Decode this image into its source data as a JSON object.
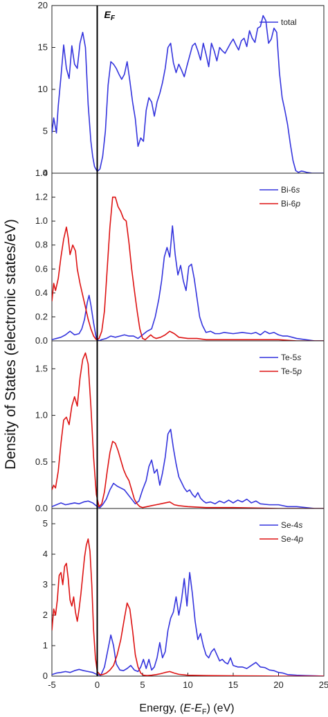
{
  "ylabel": "Density of States (electronic states/eV)",
  "xlabel": {
    "prefix": "Energy, (",
    "e": "E",
    "minus": "-",
    "ef": "E",
    "ef_sub": "F",
    "suffix": ") (eV)"
  },
  "fermi_label": {
    "main": "E",
    "sub": "F"
  },
  "colors": {
    "s": "#3333dd",
    "p": "#dd1111",
    "fermi": "#000000"
  },
  "chart_data": [
    {
      "type": "line",
      "panel": "total",
      "xlim": [
        -5,
        25
      ],
      "ylim": [
        0,
        20
      ],
      "yticks": [
        0,
        5,
        10,
        15,
        20
      ],
      "xticks": [],
      "legend": "top-right",
      "series": [
        {
          "name": "total",
          "color": "#3333dd",
          "x": [
            -5,
            -4.8,
            -4.5,
            -4.3,
            -4,
            -3.7,
            -3.4,
            -3.1,
            -2.8,
            -2.5,
            -2.2,
            -1.9,
            -1.6,
            -1.3,
            -1,
            -0.7,
            -0.5,
            -0.3,
            0,
            0.3,
            0.6,
            0.9,
            1.2,
            1.5,
            1.8,
            2.1,
            2.4,
            2.7,
            3,
            3.3,
            3.6,
            3.9,
            4.2,
            4.5,
            4.8,
            5.1,
            5.4,
            5.7,
            6,
            6.3,
            6.6,
            6.9,
            7.2,
            7.5,
            7.8,
            8.1,
            8.4,
            8.7,
            9,
            9.3,
            9.6,
            9.9,
            10.2,
            10.5,
            10.8,
            11.1,
            11.4,
            11.7,
            12,
            12.3,
            12.6,
            12.9,
            13.2,
            13.5,
            13.8,
            14.1,
            14.4,
            14.7,
            15,
            15.3,
            15.6,
            15.9,
            16.2,
            16.5,
            16.8,
            17.1,
            17.4,
            17.7,
            18,
            18.3,
            18.6,
            18.9,
            19.2,
            19.5,
            19.8,
            20.1,
            20.4,
            20.7,
            21,
            21.3,
            21.6,
            21.9,
            22.2,
            22.5,
            22.8,
            23.1,
            23.4,
            23.7,
            24,
            24.5,
            25
          ],
          "y": [
            4.8,
            6.6,
            4.8,
            8,
            11.5,
            15.3,
            12.5,
            11.3,
            15.2,
            13,
            12.5,
            15.5,
            16.8,
            15,
            8.2,
            3.8,
            2,
            0.8,
            0.2,
            0.5,
            2,
            5,
            10.5,
            13.3,
            13,
            12.5,
            11.8,
            11.2,
            11.8,
            13.3,
            11,
            8.5,
            6.5,
            3.2,
            4.2,
            3.8,
            7.5,
            9,
            8.5,
            6.8,
            8.5,
            9.5,
            10.8,
            12.5,
            15,
            15.5,
            13.2,
            12,
            13,
            12.3,
            11.5,
            12.8,
            14,
            15.2,
            15.5,
            14.6,
            13.5,
            15.5,
            14.2,
            12.7,
            15.5,
            14.6,
            13.4,
            15,
            14.6,
            14.3,
            14.9,
            15.5,
            16,
            15.3,
            14.7,
            15.8,
            16.1,
            15.1,
            17,
            16.1,
            15.6,
            17.3,
            17.5,
            18.8,
            18.2,
            15.5,
            16,
            17.3,
            16.8,
            12,
            9,
            7.5,
            5.8,
            3.5,
            1.5,
            0.3,
            0.1,
            0.25,
            0.2,
            0.1,
            0.05,
            0,
            0,
            0,
            0
          ]
        }
      ]
    },
    {
      "type": "line",
      "panel": "Bi",
      "xlim": [
        -5,
        25
      ],
      "ylim": [
        0,
        1.4
      ],
      "yticks": [
        0,
        0.2,
        0.4,
        0.6,
        0.8,
        1.0,
        1.2,
        1.4
      ],
      "yticklabels": [
        "0.0",
        "0.2",
        "0.4",
        "0.6",
        "0.8",
        "1.0",
        "1.2",
        "1.4"
      ],
      "xticks": [],
      "legend": "top-right",
      "series": [
        {
          "name": "Bi-6s",
          "color": "#3333dd",
          "x": [
            -5,
            -4.5,
            -4,
            -3.5,
            -3,
            -2.5,
            -2,
            -1.7,
            -1.4,
            -1.1,
            -0.9,
            -0.7,
            -0.4,
            -0.1,
            0.2,
            0.5,
            1,
            1.5,
            2,
            2.5,
            3,
            3.5,
            4,
            4.5,
            5,
            5.5,
            6,
            6.4,
            6.8,
            7.1,
            7.4,
            7.7,
            8,
            8.3,
            8.6,
            8.9,
            9.2,
            9.5,
            9.8,
            10.1,
            10.4,
            10.7,
            11,
            11.3,
            11.6,
            12,
            12.5,
            13,
            13.5,
            14,
            15,
            16,
            17,
            17.5,
            18,
            18.5,
            19,
            19.5,
            20,
            20.5,
            21,
            21.5,
            22,
            23,
            24,
            25
          ],
          "y": [
            0.01,
            0.02,
            0.03,
            0.05,
            0.08,
            0.05,
            0.06,
            0.1,
            0.18,
            0.32,
            0.38,
            0.3,
            0.15,
            0.02,
            0,
            0.01,
            0.02,
            0.04,
            0.03,
            0.04,
            0.05,
            0.04,
            0.04,
            0.02,
            0.05,
            0.08,
            0.1,
            0.2,
            0.35,
            0.5,
            0.7,
            0.78,
            0.7,
            0.96,
            0.72,
            0.55,
            0.63,
            0.5,
            0.42,
            0.62,
            0.64,
            0.52,
            0.36,
            0.2,
            0.13,
            0.07,
            0.08,
            0.06,
            0.06,
            0.07,
            0.06,
            0.07,
            0.06,
            0.07,
            0.05,
            0.08,
            0.06,
            0.07,
            0.05,
            0.04,
            0.04,
            0.03,
            0.02,
            0.01,
            0,
            0
          ]
        },
        {
          "name": "Bi-6p",
          "color": "#dd1111",
          "x": [
            -5,
            -4.8,
            -4.6,
            -4.3,
            -4,
            -3.7,
            -3.4,
            -3.2,
            -3,
            -2.7,
            -2.4,
            -2.2,
            -1.9,
            -1.6,
            -1.3,
            -1,
            -0.7,
            -0.4,
            -0.1,
            0.2,
            0.5,
            0.8,
            1.1,
            1.4,
            1.7,
            2,
            2.3,
            2.6,
            2.9,
            3.2,
            3.5,
            3.8,
            4.1,
            4.4,
            4.7,
            5,
            5.3,
            5.6,
            5.9,
            6.2,
            6.5,
            7,
            7.5,
            8,
            8.5,
            9,
            10,
            11,
            12,
            14,
            16,
            18,
            20,
            22,
            25
          ],
          "y": [
            0.33,
            0.48,
            0.42,
            0.52,
            0.7,
            0.85,
            0.95,
            0.86,
            0.72,
            0.8,
            0.75,
            0.6,
            0.48,
            0.38,
            0.28,
            0.18,
            0.1,
            0.04,
            0.01,
            0.02,
            0.08,
            0.25,
            0.6,
            0.95,
            1.2,
            1.2,
            1.12,
            1.08,
            1.02,
            1.0,
            0.82,
            0.6,
            0.42,
            0.25,
            0.1,
            0.02,
            0.01,
            0.03,
            0.05,
            0.03,
            0.02,
            0.03,
            0.05,
            0.08,
            0.06,
            0.03,
            0.02,
            0.02,
            0.01,
            0.01,
            0.01,
            0.01,
            0.01,
            0,
            0
          ]
        }
      ]
    },
    {
      "type": "line",
      "panel": "Te",
      "xlim": [
        -5,
        25
      ],
      "ylim": [
        0,
        1.8
      ],
      "yticks": [
        0,
        0.5,
        1.0,
        1.5
      ],
      "yticklabels": [
        "0.0",
        "0.5",
        "1.0",
        "1.5"
      ],
      "xticks": [],
      "legend": "top-right",
      "series": [
        {
          "name": "Te-5s",
          "color": "#3333dd",
          "x": [
            -5,
            -4.5,
            -4,
            -3.5,
            -3,
            -2.5,
            -2,
            -1.5,
            -1,
            -0.5,
            0,
            0.3,
            0.6,
            1,
            1.4,
            1.8,
            2.2,
            2.6,
            3,
            3.4,
            3.8,
            4.2,
            4.6,
            5,
            5.4,
            5.7,
            6,
            6.3,
            6.6,
            6.9,
            7.2,
            7.5,
            7.8,
            8.1,
            8.4,
            8.7,
            9,
            9.3,
            9.6,
            9.9,
            10.2,
            10.5,
            10.8,
            11.1,
            11.4,
            11.7,
            12,
            12.5,
            13,
            13.5,
            14,
            14.5,
            15,
            15.5,
            16,
            16.5,
            17,
            17.5,
            18,
            19,
            20,
            21,
            22,
            23,
            24,
            25
          ],
          "y": [
            0.02,
            0.04,
            0.06,
            0.04,
            0.05,
            0.06,
            0.05,
            0.07,
            0.08,
            0.06,
            0.02,
            0.01,
            0.04,
            0.1,
            0.2,
            0.27,
            0.24,
            0.22,
            0.2,
            0.15,
            0.1,
            0.05,
            0.08,
            0.2,
            0.3,
            0.45,
            0.52,
            0.38,
            0.42,
            0.25,
            0.38,
            0.55,
            0.8,
            0.85,
            0.65,
            0.48,
            0.34,
            0.28,
            0.22,
            0.18,
            0.2,
            0.15,
            0.12,
            0.17,
            0.11,
            0.08,
            0.06,
            0.07,
            0.05,
            0.08,
            0.06,
            0.09,
            0.06,
            0.09,
            0.07,
            0.1,
            0.06,
            0.08,
            0.05,
            0.04,
            0.04,
            0.02,
            0.02,
            0.01,
            0,
            0
          ]
        },
        {
          "name": "Te-5p",
          "color": "#dd1111",
          "x": [
            -5,
            -4.8,
            -4.6,
            -4.3,
            -4,
            -3.7,
            -3.4,
            -3.1,
            -2.8,
            -2.5,
            -2.2,
            -1.9,
            -1.6,
            -1.3,
            -1,
            -0.7,
            -0.4,
            -0.1,
            0.2,
            0.5,
            0.8,
            1.1,
            1.4,
            1.7,
            2,
            2.3,
            2.6,
            2.9,
            3.2,
            3.5,
            3.8,
            4.1,
            4.4,
            4.7,
            5,
            5.5,
            6,
            6.5,
            7,
            7.5,
            8,
            8.5,
            9,
            10,
            12,
            15,
            20,
            25
          ],
          "y": [
            0.2,
            0.25,
            0.22,
            0.4,
            0.7,
            0.95,
            0.98,
            0.9,
            1.1,
            1.2,
            1.1,
            1.4,
            1.6,
            1.67,
            1.55,
            1.1,
            0.55,
            0.15,
            0.02,
            0.05,
            0.18,
            0.4,
            0.6,
            0.72,
            0.7,
            0.62,
            0.52,
            0.42,
            0.35,
            0.3,
            0.2,
            0.1,
            0.05,
            0.02,
            0.01,
            0.02,
            0.03,
            0.04,
            0.05,
            0.06,
            0.07,
            0.04,
            0.03,
            0.02,
            0.01,
            0.01,
            0,
            0
          ]
        }
      ]
    },
    {
      "type": "line",
      "panel": "Se",
      "xlim": [
        -5,
        25
      ],
      "ylim": [
        0,
        5.5
      ],
      "yticks": [
        0,
        1,
        2,
        3,
        4,
        5
      ],
      "xticks": [
        -5,
        0,
        5,
        10,
        15,
        20,
        25
      ],
      "xticklabels": [
        "-5",
        "0",
        "5",
        "10",
        "15",
        "20",
        "25"
      ],
      "legend": "top-right",
      "series": [
        {
          "name": "Se-4s",
          "color": "#3333dd",
          "x": [
            -5,
            -4.5,
            -4,
            -3.5,
            -3,
            -2.5,
            -2,
            -1.5,
            -1,
            -0.5,
            0,
            0.4,
            0.8,
            1.2,
            1.5,
            1.8,
            2.1,
            2.5,
            2.9,
            3.3,
            3.7,
            4.1,
            4.5,
            4.8,
            5.1,
            5.4,
            5.7,
            6,
            6.3,
            6.6,
            6.9,
            7.2,
            7.5,
            7.8,
            8.1,
            8.4,
            8.7,
            9,
            9.3,
            9.6,
            9.9,
            10.2,
            10.5,
            10.8,
            11.1,
            11.4,
            11.7,
            12,
            12.3,
            12.6,
            12.9,
            13.2,
            13.5,
            13.8,
            14.1,
            14.4,
            14.7,
            15,
            15.5,
            16,
            16.5,
            17,
            17.5,
            18,
            18.5,
            19,
            19.5,
            20,
            20.5,
            21,
            22,
            23,
            24,
            25
          ],
          "y": [
            0.05,
            0.1,
            0.12,
            0.15,
            0.12,
            0.18,
            0.22,
            0.18,
            0.15,
            0.12,
            0.05,
            0.03,
            0.3,
            0.9,
            1.35,
            1,
            0.4,
            0.2,
            0.18,
            0.25,
            0.35,
            0.2,
            0.15,
            0.3,
            0.55,
            0.25,
            0.55,
            0.2,
            0.3,
            0.6,
            1.1,
            0.6,
            0.8,
            1.5,
            1.9,
            2.1,
            2.6,
            2.0,
            2.5,
            3.2,
            2.3,
            3.4,
            2.7,
            1.8,
            1.2,
            1.4,
            1.0,
            0.7,
            0.6,
            0.8,
            0.9,
            0.7,
            0.5,
            0.55,
            0.45,
            0.4,
            0.6,
            0.35,
            0.3,
            0.3,
            0.25,
            0.35,
            0.45,
            0.3,
            0.28,
            0.2,
            0.18,
            0.12,
            0.1,
            0.05,
            0.03,
            0.02,
            0.01,
            0
          ]
        },
        {
          "name": "Se-4p",
          "color": "#dd1111",
          "x": [
            -5,
            -4.8,
            -4.6,
            -4.4,
            -4.2,
            -4,
            -3.8,
            -3.6,
            -3.4,
            -3.2,
            -3,
            -2.8,
            -2.6,
            -2.4,
            -2.2,
            -2,
            -1.8,
            -1.6,
            -1.4,
            -1.2,
            -1,
            -0.8,
            -0.6,
            -0.4,
            -0.2,
            0,
            0.3,
            0.6,
            1,
            1.4,
            1.8,
            2.2,
            2.6,
            3,
            3.3,
            3.6,
            3.9,
            4.2,
            4.5,
            4.8,
            5.1,
            5.5,
            6,
            6.5,
            7,
            7.5,
            8,
            8.5,
            9,
            10,
            12,
            15,
            20,
            25
          ],
          "y": [
            1.5,
            2.2,
            2.0,
            2.5,
            3.3,
            3.4,
            3.0,
            3.6,
            3.7,
            3.2,
            2.5,
            2.3,
            2.6,
            2.1,
            1.8,
            2.2,
            2.7,
            3.3,
            3.9,
            4.3,
            4.5,
            4.1,
            3.0,
            1.5,
            0.6,
            0.15,
            0.05,
            0.05,
            0.1,
            0.2,
            0.35,
            0.7,
            1.2,
            1.9,
            2.4,
            2.2,
            1.5,
            0.7,
            0.3,
            0.1,
            0.03,
            0.02,
            0.03,
            0.05,
            0.08,
            0.12,
            0.15,
            0.1,
            0.06,
            0.03,
            0.02,
            0.01,
            0,
            0
          ]
        }
      ]
    }
  ]
}
